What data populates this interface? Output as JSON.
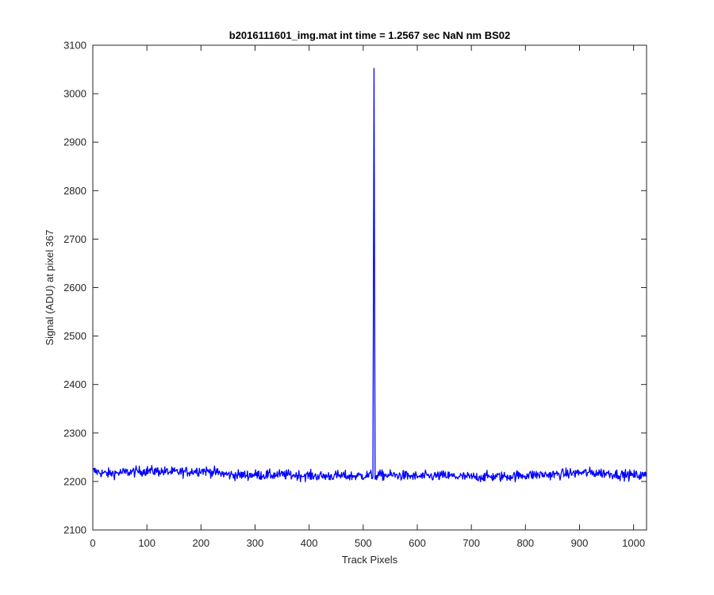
{
  "chart_data": {
    "type": "line",
    "title": "b2016111601_img.mat int time = 1.2567 sec  NaN nm BS02",
    "xlabel": "Track Pixels",
    "ylabel": "Signal (ADU) at pixel 367",
    "xlim": [
      0,
      1024
    ],
    "ylim": [
      2100,
      3100
    ],
    "xticks": [
      0,
      100,
      200,
      300,
      400,
      500,
      600,
      700,
      800,
      900,
      1000
    ],
    "yticks": [
      2100,
      2200,
      2300,
      2400,
      2500,
      2600,
      2700,
      2800,
      2900,
      3000,
      3100
    ],
    "grid": false,
    "line_color": "#0000ff",
    "series": [
      {
        "x": [
          0,
          25,
          50,
          75,
          100,
          125,
          150,
          175,
          200,
          225,
          250,
          275,
          300,
          325,
          350,
          375,
          400,
          425,
          450,
          475,
          500,
          515,
          518,
          520,
          522,
          525,
          550,
          575,
          600,
          625,
          650,
          675,
          700,
          725,
          750,
          775,
          800,
          825,
          850,
          875,
          900,
          925,
          950,
          975,
          1000,
          1023
        ],
        "y": [
          2222,
          2216,
          2218,
          2220,
          2222,
          2221,
          2219,
          2220,
          2223,
          2219,
          2214,
          2213,
          2214,
          2213,
          2214,
          2213,
          2212,
          2211,
          2212,
          2211,
          2212,
          2213,
          2210,
          3052,
          2205,
          2213,
          2213,
          2212,
          2210,
          2211,
          2212,
          2210,
          2209,
          2210,
          2210,
          2211,
          2213,
          2214,
          2214,
          2216,
          2218,
          2218,
          2217,
          2214,
          2213,
          2212
        ],
        "noise_amplitude": 9
      }
    ]
  }
}
